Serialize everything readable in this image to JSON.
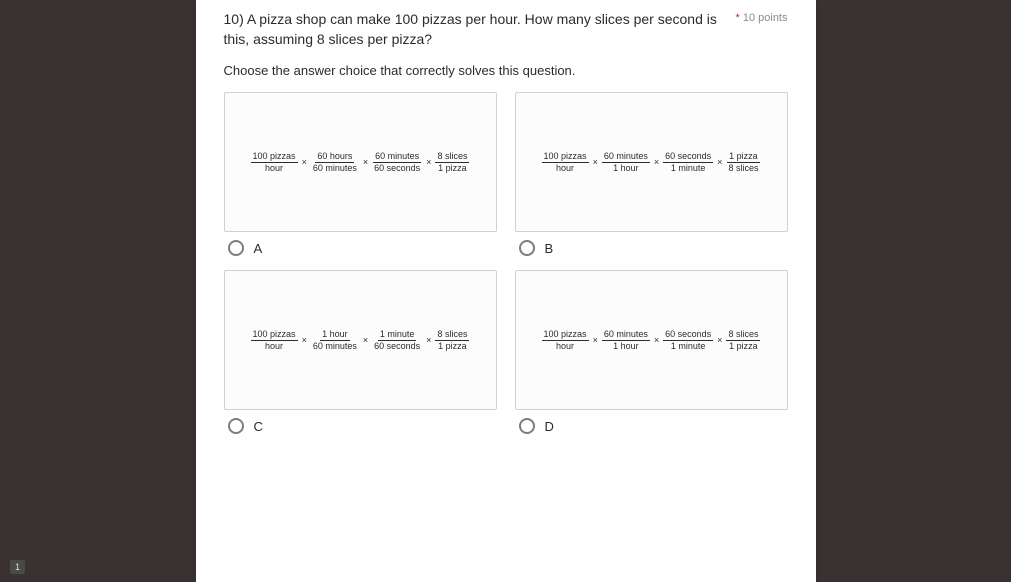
{
  "colors": {
    "page_bg": "#3a3230",
    "card_bg": "#ffffff",
    "text": "#2b2b2b",
    "muted": "#8a8a8a",
    "border": "#d0d0d0",
    "radio_border": "#7d7d7d"
  },
  "question": {
    "title": "10) A pizza shop can make 100 pizzas per hour. How many slices per second is this, assuming 8 slices per pizza?",
    "points": "10 points",
    "subtitle": "Choose the answer choice that correctly solves this question."
  },
  "options": {
    "a": {
      "label": "A",
      "terms": [
        {
          "num": "100 pizzas",
          "den": "hour"
        },
        {
          "num": "60 hours",
          "den": "60 minutes"
        },
        {
          "num": "60 minutes",
          "den": "60 seconds"
        },
        {
          "num": "8 slices",
          "den": "1 pizza"
        }
      ]
    },
    "b": {
      "label": "B",
      "terms": [
        {
          "num": "100 pizzas",
          "den": "hour"
        },
        {
          "num": "60 minutes",
          "den": "1 hour"
        },
        {
          "num": "60 seconds",
          "den": "1 minute"
        },
        {
          "num": "1 pizza",
          "den": "8 slices"
        }
      ]
    },
    "c": {
      "label": "C",
      "terms": [
        {
          "num": "100 pizzas",
          "den": "hour"
        },
        {
          "num": "1 hour",
          "den": "60 minutes"
        },
        {
          "num": "1 minute",
          "den": "60 seconds"
        },
        {
          "num": "8 slices",
          "den": "1 pizza"
        }
      ]
    },
    "d": {
      "label": "D",
      "terms": [
        {
          "num": "100 pizzas",
          "den": "hour"
        },
        {
          "num": "60 minutes",
          "den": "1 hour"
        },
        {
          "num": "60 seconds",
          "den": "1 minute"
        },
        {
          "num": "8 slices",
          "den": "1 pizza"
        }
      ]
    }
  },
  "slide_counter": "1"
}
